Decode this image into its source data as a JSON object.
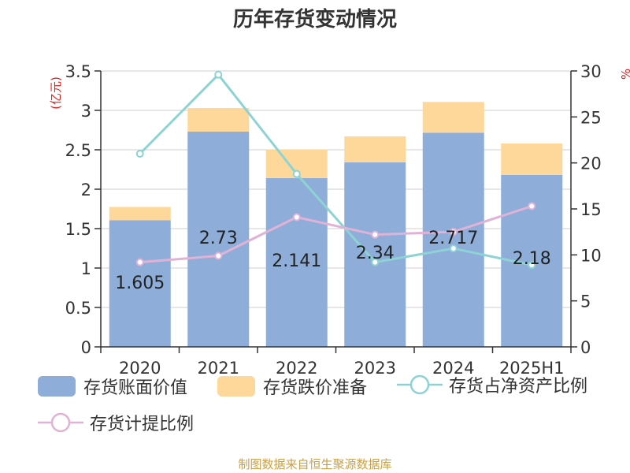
{
  "title": "历年存货变动情况",
  "source": "制图数据来自恒生聚源数据库",
  "chart_data": {
    "type": "bar",
    "title": "历年存货变动情况",
    "categories": [
      "2020",
      "2021",
      "2022",
      "2023",
      "2024",
      "2025H1"
    ],
    "left_axis": {
      "label": "(亿元)",
      "ylim": [
        0,
        3.5
      ],
      "ticks": [
        "0",
        "0.5",
        "1",
        "1.5",
        "2",
        "2.5",
        "3",
        "3.5"
      ]
    },
    "right_axis": {
      "label": "%",
      "ylim": [
        0,
        30
      ],
      "ticks": [
        "0",
        "5",
        "10",
        "15",
        "20",
        "25",
        "30"
      ]
    },
    "series": [
      {
        "name": "存货账面价值",
        "kind": "bar",
        "stack": "inventory",
        "axis": "left",
        "color": "#8eadd9",
        "values": [
          1.605,
          2.73,
          2.141,
          2.34,
          2.717,
          2.18
        ],
        "labels": [
          "1.605",
          "2.73",
          "2.141",
          "2.34",
          "2.717",
          "2.18"
        ]
      },
      {
        "name": "存货跌价准备",
        "kind": "bar",
        "stack": "inventory",
        "axis": "left",
        "color": "#fdd89a",
        "values": [
          0.17,
          0.3,
          0.36,
          0.33,
          0.39,
          0.4
        ]
      },
      {
        "name": "存货占净资产比例",
        "kind": "line",
        "axis": "right",
        "color": "#8ed3d3",
        "values": [
          21.0,
          29.6,
          18.8,
          9.2,
          10.7,
          8.9
        ]
      },
      {
        "name": "存货计提比例",
        "kind": "line",
        "axis": "right",
        "color": "#e0b3d6",
        "values": [
          9.2,
          9.9,
          14.1,
          12.2,
          12.5,
          15.3
        ]
      }
    ],
    "grid": true,
    "legend_position": "bottom"
  }
}
